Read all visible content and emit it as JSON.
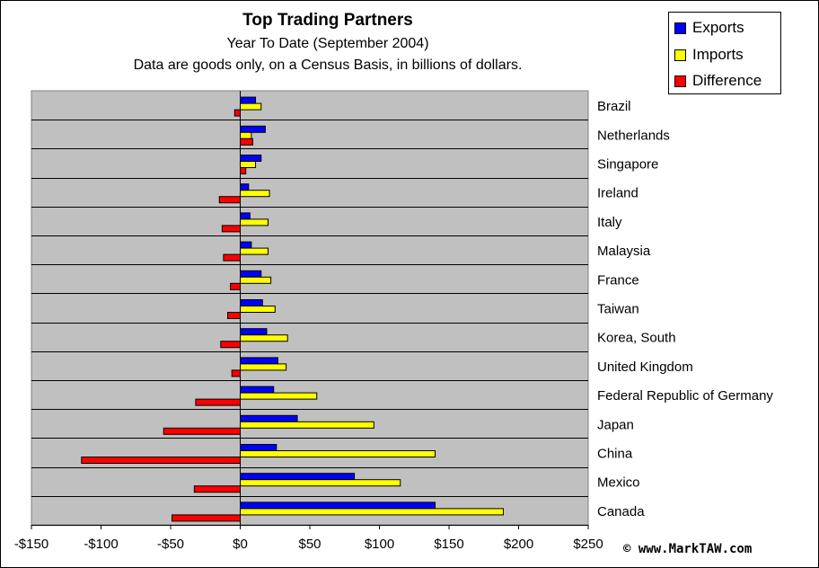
{
  "chart_data": {
    "type": "bar",
    "orientation": "horizontal",
    "title": "Top Trading Partners",
    "subtitle": "Year To Date (September 2004)",
    "note": "Data are goods only, on a Census Basis, in billions of dollars.",
    "categories": [
      "Brazil",
      "Netherlands",
      "Singapore",
      "Ireland",
      "Italy",
      "Malaysia",
      "France",
      "Taiwan",
      "Korea, South",
      "United Kingdom",
      "Federal Republic of Germany",
      "Japan",
      "China",
      "Mexico",
      "Canada"
    ],
    "series": [
      {
        "name": "Exports",
        "values": [
          11,
          18,
          15,
          6,
          7,
          8,
          15,
          16,
          19,
          27,
          24,
          41,
          26,
          82,
          140
        ]
      },
      {
        "name": "Imports",
        "values": [
          15,
          8,
          11,
          21,
          20,
          20,
          22,
          25,
          34,
          33,
          55,
          96,
          140,
          115,
          189
        ]
      },
      {
        "name": "Difference",
        "values": [
          -4,
          9,
          4,
          -15,
          -13,
          -12,
          -7,
          -9,
          -14,
          -6,
          -32,
          -55,
          -114,
          -33,
          -49
        ]
      }
    ],
    "xlim": [
      -150,
      250
    ],
    "xticks": [
      -150,
      -100,
      -50,
      0,
      50,
      100,
      150,
      200,
      250
    ],
    "xtick_labels": [
      "-$150",
      "-$100",
      "-$50",
      "$0",
      "$50",
      "$100",
      "$150",
      "$200",
      "$250"
    ],
    "grid": true,
    "legend_position": "top-right",
    "colors": {
      "Exports": "#0000ff",
      "Imports": "#ffff00",
      "Difference": "#ff0000",
      "plot_background": "#c0c0c0"
    }
  },
  "watermark": "© www.MarkTAW.com"
}
